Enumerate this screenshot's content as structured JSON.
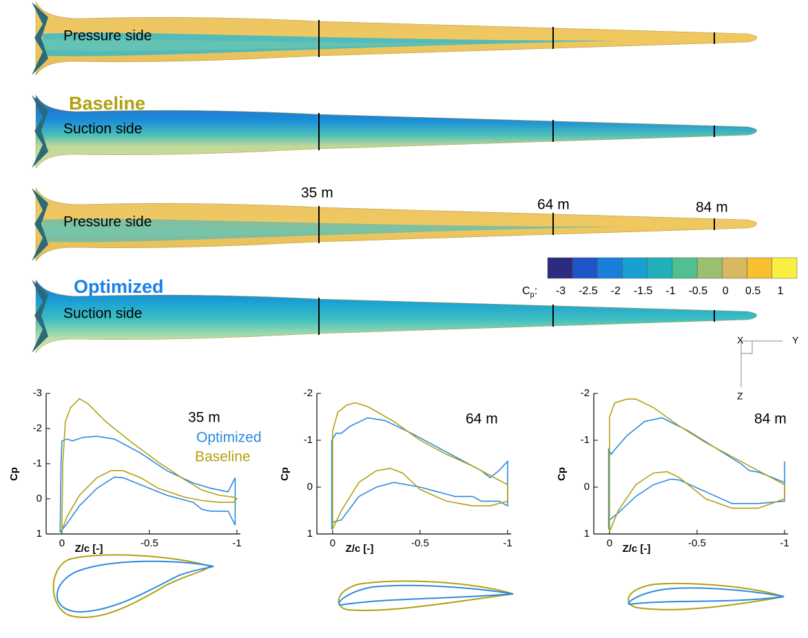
{
  "blades": {
    "panels": [
      "Pressure side",
      "Suction side",
      "Pressure side",
      "Suction side"
    ],
    "groups": [
      "Baseline",
      "Optimized"
    ],
    "stations": [
      "35 m",
      "64 m",
      "84 m"
    ]
  },
  "colorbar": {
    "label": "C",
    "subscript": "p",
    "suffix": ":",
    "ticks": [
      -3,
      -2.5,
      -2,
      -1.5,
      -1,
      -0.5,
      0,
      0.5,
      1
    ],
    "colors": [
      "#2e2a80",
      "#1f55c8",
      "#1a7fd8",
      "#18a0d0",
      "#20b0b8",
      "#50c090",
      "#98c070",
      "#d8b860",
      "#f8c030",
      "#f8f040"
    ]
  },
  "triad": {
    "x": "X",
    "y": "Y",
    "z": "Z"
  },
  "chart_data": [
    {
      "type": "line",
      "xlabel": "Z/c [-]",
      "ylabel": "Cp",
      "station": "35 m",
      "xlim": [
        0.09,
        -1.02
      ],
      "xticks": [
        0,
        -0.5,
        -1
      ],
      "ylim": [
        1,
        -3
      ],
      "yticks": [
        -3,
        -2,
        -1,
        0,
        1
      ],
      "series": [
        {
          "name": "Optimized",
          "color": "#2a8ae0",
          "x": [
            0.01,
            0.005,
            0,
            -0.03,
            -0.06,
            -0.12,
            -0.2,
            -0.3,
            -0.45,
            -0.6,
            -0.75,
            -0.85,
            -0.95,
            -0.99,
            -0.99,
            -0.95,
            -0.85,
            -0.8,
            -0.75,
            -0.6,
            -0.45,
            -0.35,
            -0.3,
            -0.2,
            -0.1,
            -0.03,
            0.01
          ],
          "values": [
            0.95,
            -1.0,
            -1.65,
            -1.7,
            -1.65,
            -1.75,
            -1.78,
            -1.7,
            -1.3,
            -0.8,
            -0.45,
            -0.3,
            -0.2,
            -0.6,
            0.75,
            0.35,
            0.35,
            0.3,
            0.1,
            -0.1,
            -0.4,
            -0.6,
            -0.62,
            -0.3,
            0.2,
            0.7,
            0.95
          ]
        },
        {
          "name": "Baseline",
          "color": "#b0a010",
          "x": [
            0,
            -0.005,
            -0.02,
            -0.05,
            -0.1,
            -0.15,
            -0.25,
            -0.4,
            -0.55,
            -0.7,
            -0.8,
            -0.9,
            -0.98,
            -1,
            -0.98,
            -0.9,
            -0.8,
            -0.7,
            -0.55,
            -0.45,
            -0.35,
            -0.28,
            -0.2,
            -0.1,
            -0.03,
            0
          ],
          "values": [
            0.9,
            -1.0,
            -2.2,
            -2.6,
            -2.85,
            -2.7,
            -2.2,
            -1.6,
            -1.05,
            -0.55,
            -0.25,
            -0.1,
            -0.05,
            0,
            0.1,
            0.1,
            0.05,
            -0.05,
            -0.3,
            -0.6,
            -0.8,
            -0.8,
            -0.6,
            -0.1,
            0.5,
            0.9
          ]
        }
      ]
    },
    {
      "type": "line",
      "xlabel": "Z/c [-]",
      "ylabel": "Cp",
      "station": "64 m",
      "xlim": [
        0.09,
        -1.02
      ],
      "xticks": [
        0,
        -0.5,
        -1
      ],
      "ylim": [
        1,
        -2
      ],
      "yticks": [
        -2,
        -1,
        0,
        1
      ],
      "series": [
        {
          "color": "#2a8ae0",
          "x": [
            0.005,
            0.005,
            -0.02,
            -0.05,
            -0.1,
            -0.2,
            -0.3,
            -0.45,
            -0.6,
            -0.75,
            -0.85,
            -0.9,
            -0.95,
            -1,
            -1,
            -0.95,
            -0.85,
            -0.8,
            -0.7,
            -0.5,
            -0.35,
            -0.25,
            -0.15,
            -0.05,
            0,
            0.005
          ],
          "values": [
            0.9,
            -1.0,
            -1.15,
            -1.15,
            -1.3,
            -1.48,
            -1.42,
            -1.15,
            -0.85,
            -0.55,
            -0.35,
            -0.2,
            -0.35,
            -0.55,
            0.4,
            0.3,
            0.3,
            0.2,
            0.2,
            0.0,
            -0.1,
            0.0,
            0.2,
            0.7,
            0.75,
            0.9
          ]
        },
        {
          "color": "#b0a010",
          "x": [
            0,
            0,
            -0.03,
            -0.08,
            -0.13,
            -0.2,
            -0.35,
            -0.5,
            -0.65,
            -0.8,
            -0.9,
            -1,
            -1,
            -0.9,
            -0.8,
            -0.65,
            -0.5,
            -0.4,
            -0.33,
            -0.25,
            -0.15,
            -0.05,
            0
          ],
          "values": [
            0.9,
            -1.2,
            -1.6,
            -1.75,
            -1.8,
            -1.72,
            -1.4,
            -1.0,
            -0.7,
            -0.45,
            -0.25,
            -0.05,
            0.3,
            0.4,
            0.4,
            0.3,
            0.05,
            -0.3,
            -0.4,
            -0.35,
            -0.1,
            0.5,
            0.9
          ]
        }
      ]
    },
    {
      "type": "line",
      "xlabel": "Z/c [-]",
      "ylabel": "Cp",
      "station": "84 m",
      "xlim": [
        0.09,
        -1.02
      ],
      "xticks": [
        0,
        -0.5,
        -1
      ],
      "ylim": [
        1,
        -2
      ],
      "yticks": [
        -2,
        -1,
        0,
        1
      ],
      "series": [
        {
          "color": "#2a8ae0",
          "x": [
            0.005,
            0.005,
            -0.01,
            -0.03,
            -0.1,
            -0.2,
            -0.3,
            -0.45,
            -0.6,
            -0.75,
            -0.8,
            -0.85,
            -0.9,
            -1,
            -1,
            -1,
            -0.85,
            -0.7,
            -0.55,
            -0.4,
            -0.35,
            -0.25,
            -0.15,
            -0.05,
            0,
            0.005
          ],
          "values": [
            0.9,
            -0.8,
            -0.7,
            -0.8,
            -1.1,
            -1.4,
            -1.48,
            -1.2,
            -0.85,
            -0.5,
            -0.35,
            -0.32,
            -0.25,
            -0.1,
            -0.55,
            0.3,
            0.35,
            0.35,
            0.1,
            -0.15,
            -0.17,
            -0.05,
            0.2,
            0.55,
            0.7,
            0.9
          ]
        },
        {
          "color": "#b0a010",
          "x": [
            0,
            0,
            -0.03,
            -0.1,
            -0.15,
            -0.25,
            -0.4,
            -0.55,
            -0.7,
            -0.85,
            -1,
            -1,
            -0.85,
            -0.7,
            -0.55,
            -0.4,
            -0.33,
            -0.25,
            -0.15,
            -0.05,
            0
          ],
          "values": [
            0.95,
            -1.5,
            -1.8,
            -1.88,
            -1.88,
            -1.7,
            -1.3,
            -0.95,
            -0.65,
            -0.35,
            -0.05,
            0.25,
            0.45,
            0.45,
            0.25,
            -0.2,
            -0.33,
            -0.3,
            -0.05,
            0.5,
            0.95
          ]
        }
      ]
    }
  ]
}
